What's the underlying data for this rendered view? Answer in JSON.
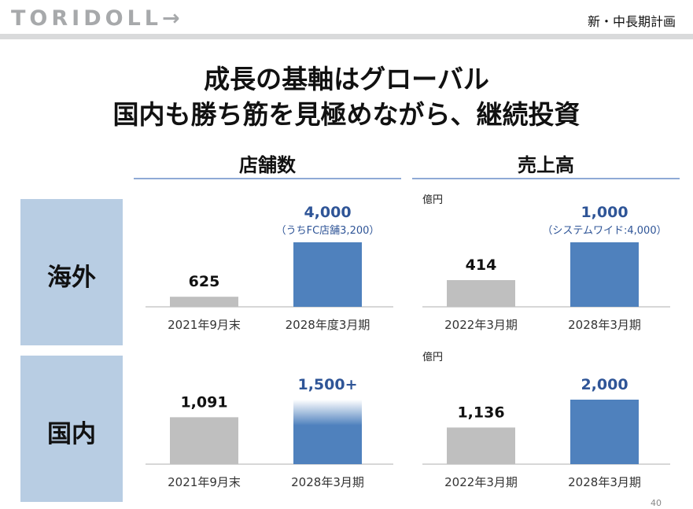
{
  "header": {
    "logo": "TORIDOLL→",
    "plan_label": "新・中長期計画",
    "page_number": "40"
  },
  "title": {
    "line1": "成長の基軸はグローバル",
    "line2": "国内も勝ち筋を見極めながら、継続投資"
  },
  "sections": {
    "stores": "店舗数",
    "sales": "売上高"
  },
  "rows": {
    "overseas": "海外",
    "domestic": "国内"
  },
  "colors": {
    "gray_bar": "#bfbfbf",
    "blue_bar": "#4f81bd",
    "accent_text": "#2f5597",
    "side_box": "#b8cde3"
  },
  "chart_data": [
    {
      "type": "bar",
      "title": "店舗数",
      "row": "海外",
      "categories": [
        "2021年9月末",
        "2028年度3月期"
      ],
      "values": [
        625,
        4000
      ],
      "value_labels": [
        "625",
        "4,000"
      ],
      "notes": [
        "",
        "（うちFC店舗3,200）"
      ],
      "colors": [
        "#bfbfbf",
        "#4f81bd"
      ],
      "unit": ""
    },
    {
      "type": "bar",
      "title": "売上高",
      "row": "海外",
      "categories": [
        "2022年3月期",
        "2028年3月期"
      ],
      "values": [
        414,
        1000
      ],
      "value_labels": [
        "414",
        "1,000"
      ],
      "notes": [
        "",
        "（システムワイド:4,000）"
      ],
      "colors": [
        "#bfbfbf",
        "#4f81bd"
      ],
      "unit": "億円"
    },
    {
      "type": "bar",
      "title": "店舗数",
      "row": "国内",
      "categories": [
        "2021年9月末",
        "2028年3月期"
      ],
      "values": [
        1091,
        1500
      ],
      "value_labels": [
        "1,091",
        "1,500+"
      ],
      "notes": [
        "",
        ""
      ],
      "colors": [
        "#bfbfbf",
        "#4f81bd"
      ],
      "gradient_last": true,
      "unit": ""
    },
    {
      "type": "bar",
      "title": "売上高",
      "row": "国内",
      "categories": [
        "2022年3月期",
        "2028年3月期"
      ],
      "values": [
        1136,
        2000
      ],
      "value_labels": [
        "1,136",
        "2,000"
      ],
      "notes": [
        "",
        ""
      ],
      "colors": [
        "#bfbfbf",
        "#4f81bd"
      ],
      "unit": "億円"
    }
  ]
}
